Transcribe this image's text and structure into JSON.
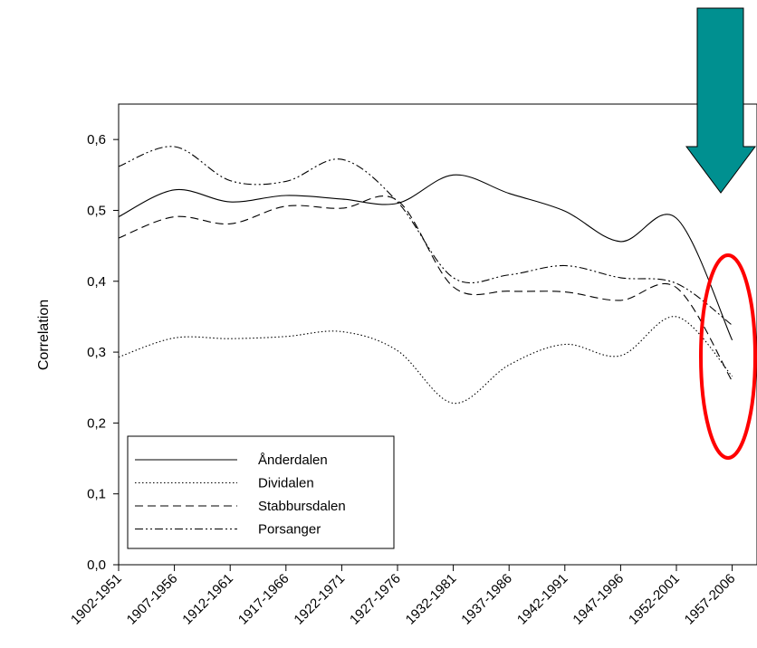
{
  "chart_data": {
    "type": "line",
    "title": "",
    "xlabel": "",
    "ylabel": "Correlation",
    "ylim": [
      0,
      0.65
    ],
    "y_ticks": [
      "0,0",
      "0,1",
      "0,2",
      "0,3",
      "0,4",
      "0,5",
      "0,6"
    ],
    "y_tick_values": [
      0,
      0.1,
      0.2,
      0.3,
      0.4,
      0.5,
      0.6
    ],
    "categories": [
      "1902-1951",
      "1907-1956",
      "1912-1961",
      "1917-1966",
      "1922-1971",
      "1927-1976",
      "1932-1981",
      "1937-1986",
      "1942-1991",
      "1947-1996",
      "1952-2001",
      "1957-2006"
    ],
    "grid": false,
    "legend_position": "bottom-left",
    "series": [
      {
        "name": "Ånderdalen",
        "dash": "solid",
        "color": "#000000",
        "values": [
          0.491,
          0.529,
          0.512,
          0.521,
          0.516,
          0.51,
          0.55,
          0.524,
          0.499,
          0.456,
          0.489,
          0.317
        ]
      },
      {
        "name": "Dividalen",
        "dash": "dotted",
        "color": "#000000",
        "values": [
          0.293,
          0.32,
          0.319,
          0.322,
          0.329,
          0.302,
          0.228,
          0.282,
          0.311,
          0.295,
          0.35,
          0.266
        ]
      },
      {
        "name": "Stabbursdalen",
        "dash": "dashed",
        "color": "#000000",
        "values": [
          0.461,
          0.491,
          0.481,
          0.506,
          0.503,
          0.514,
          0.392,
          0.386,
          0.385,
          0.373,
          0.391,
          0.259
        ]
      },
      {
        "name": "Porsanger",
        "dash": "dashdotdot",
        "color": "#000000",
        "values": [
          0.562,
          0.59,
          0.542,
          0.541,
          0.572,
          0.512,
          0.405,
          0.409,
          0.422,
          0.405,
          0.397,
          0.338
        ]
      }
    ],
    "annotations": {
      "arrow_color": "#009090",
      "ellipse_color": "#ff0000"
    }
  }
}
